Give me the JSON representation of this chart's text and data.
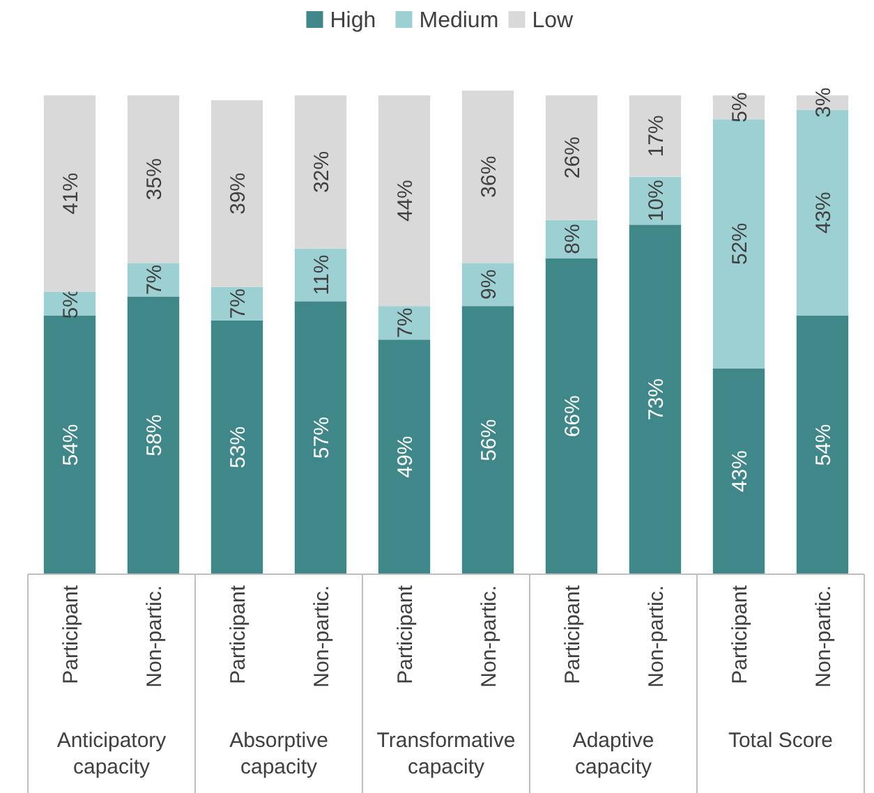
{
  "chart_data": {
    "type": "bar",
    "stacked": true,
    "legend": "top",
    "categories": [
      "Participant",
      "Non-partic.",
      "Participant",
      "Non-partic.",
      "Participant",
      "Non-partic.",
      "Participant",
      "Non-partic.",
      "Participant",
      "Non-partic."
    ],
    "series": [
      {
        "name": "High",
        "color": "#3f8789",
        "values": [
          54,
          58,
          53,
          57,
          49,
          56,
          66,
          73,
          43,
          54
        ],
        "value_labels": [
          "54%",
          "58%",
          "53%",
          "57%",
          "49%",
          "56%",
          "66%",
          "73%",
          "43%",
          "54%"
        ]
      },
      {
        "name": "Medium",
        "color": "#9dd0d3",
        "values": [
          5,
          7,
          7,
          11,
          7,
          9,
          8,
          10,
          52,
          43
        ],
        "value_labels": [
          "5%",
          "7%",
          "7%",
          "11%",
          "7%",
          "9%",
          "8%",
          "10%",
          "52%",
          "43%"
        ]
      },
      {
        "name": "Low",
        "color": "#d9d9d9",
        "values": [
          41,
          35,
          39,
          32,
          44,
          36,
          26,
          17,
          5,
          3
        ],
        "value_labels": [
          "41%",
          "35%",
          "39%",
          "32%",
          "44%",
          "36%",
          "26%",
          "17%",
          "5%",
          "3%"
        ]
      }
    ],
    "annotations": [
      "Anticipatory capacity",
      "Absorptive capacity",
      "Transformative capacity",
      "Adaptive capacity",
      "Total Score"
    ]
  }
}
